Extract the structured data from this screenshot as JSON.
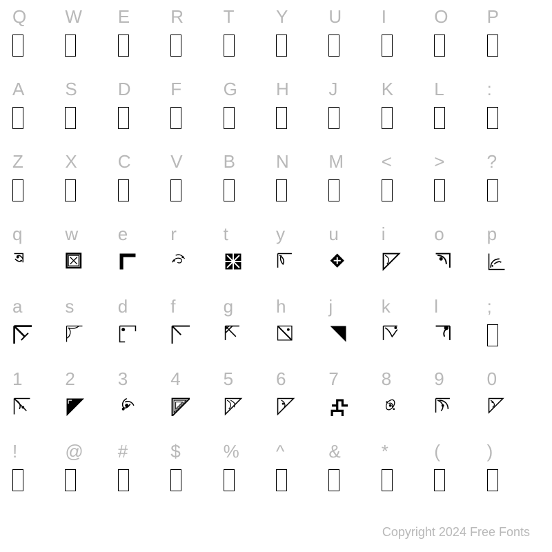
{
  "background_color": "#ffffff",
  "label_color": "#b8b8b8",
  "glyph_border_color": "#000000",
  "label_fontsize": 26,
  "copyright": "Copyright 2024 Free Fonts",
  "rows": [
    {
      "labels": [
        "Q",
        "W",
        "E",
        "R",
        "T",
        "Y",
        "U",
        "I",
        "O",
        "P"
      ],
      "glyph_type": "box"
    },
    {
      "labels": [
        "A",
        "S",
        "D",
        "F",
        "G",
        "H",
        "J",
        "K",
        "L",
        ":"
      ],
      "glyph_type": "box"
    },
    {
      "labels": [
        "Z",
        "X",
        "C",
        "V",
        "B",
        "N",
        "M",
        "<",
        ">",
        "?"
      ],
      "glyph_type": "box"
    },
    {
      "labels": [
        "q",
        "w",
        "e",
        "r",
        "t",
        "y",
        "u",
        "i",
        "o",
        "p"
      ],
      "glyph_type": "ornament_q"
    },
    {
      "labels": [
        "a",
        "s",
        "d",
        "f",
        "g",
        "h",
        "j",
        "k",
        "l",
        ";"
      ],
      "glyph_type": "ornament_a"
    },
    {
      "labels": [
        "1",
        "2",
        "3",
        "4",
        "5",
        "6",
        "7",
        "8",
        "9",
        "0"
      ],
      "glyph_type": "ornament_1"
    },
    {
      "labels": [
        "!",
        "@",
        "#",
        "$",
        "%",
        "^",
        "&",
        "*",
        "(",
        ")"
      ],
      "glyph_type": "box"
    }
  ],
  "ornaments": {
    "q": [
      "<path d='M2 2 L12 2 L12 12 M5 5 C8 3 10 5 12 8 M3 8 C5 10 8 12 10 10' fill='none' stroke='#000' stroke-width='1.2'/><circle cx='6' cy='6' r='1.5' fill='#000'/><circle cx='10' cy='10' r='1' fill='#000'/>",
      "<rect x='2' y='2' width='16' height='16' fill='none' stroke='#000' stroke-width='2'/><path d='M4 4 L16 4 L16 16 L4 16 Z M6 6 L14 14 M14 6 L6 14' fill='none' stroke='#000' stroke-width='1'/>",
      "<path d='M2 2 L20 2 L20 6 L6 6 L6 20 L2 20 Z' fill='#000'/>",
      "<path d='M2 12 C4 8 8 6 12 8 C14 10 12 14 8 12 M6 4 C10 2 14 4 16 8' fill='none' stroke='#000' stroke-width='1'/><circle cx='4' cy='10' r='1.2' fill='#000'/><circle cx='14' cy='6' r='1.2' fill='#000'/>",
      "<rect x='2' y='2' width='18' height='18' fill='#000'/><path d='M4 4 L18 18 M18 4 L4 18 M11 2 L11 20 M2 11 L20 11' stroke='#fff' stroke-width='1.5'/>",
      "<path d='M2 2 L18 2 M2 2 L2 18 M4 4 C8 6 10 10 8 14 C6 12 4 8 6 4' fill='none' stroke='#000' stroke-width='1.2'/>",
      "<path d='M10 2 L18 10 L10 18 L2 10 Z' fill='#000'/><path d='M6 10 L14 10 M10 6 L10 14' stroke='#fff' stroke-width='1.5'/>",
      "<path d='M2 2 L20 2 L2 20 Z' fill='none' stroke='#000' stroke-width='1.5'/><path d='M4 4 C8 6 10 10 6 14' fill='none' stroke='#000' stroke-width='1'/>",
      "<path d='M2 2 L18 2 L18 18 M4 4 C10 4 14 8 14 14' fill='none' stroke='#000' stroke-width='1.5'/><circle cx='8' cy='8' r='2' fill='#000'/>",
      "<path d='M2 2 L2 20 L20 20 M4 18 C4 12 8 8 14 8 M8 14 C10 12 14 10 16 12' fill='none' stroke='#000' stroke-width='1.2'/><circle cx='6' cy='16' r='1' fill='#000'/>"
    ],
    "a": [
      "<path d='M2 2 L2 24 M2 2 L24 2 M2 2 L14 14' fill='none' stroke='#000' stroke-width='2'/><path d='M14 14 L18 10 M14 14 L10 18' stroke='#000' stroke-width='1.5'/>",
      "<path d='M2 2 L2 20 M2 2 L20 2 M4 4 C8 8 6 14 2 16 M4 4 C8 6 14 4 16 2' fill='none' stroke='#000' stroke-width='1'/>",
      "<path d='M2 2 L20 2 L20 8 M2 2 L2 20 L8 20' fill='none' stroke='#000' stroke-width='1.2'/><circle cx='6' cy='6' r='2' fill='#000'/>",
      "<path d='M2 2 L22 2 M2 2 L2 22 M2 2 L12 12' fill='none' stroke='#000' stroke-width='1.5'/>",
      "<path d='M2 2 L2 18 M2 2 L18 2 M2 2 L14 14 M6 2 L2 6 M10 2 L2 10' fill='none' stroke='#000' stroke-width='1.2'/>",
      "<path d='M2 2 L18 2 L18 18 L2 18 Z' fill='none' stroke='#000' stroke-width='1'/><path d='M2 2 L18 18' stroke='#000' stroke-width='1.5'/><circle cx='14' cy='6' r='1.5' fill='#000'/>",
      "<path d='M2 2 L20 2 L20 20 Z' fill='#000'/>",
      "<path d='M2 2 L2 18 M2 2 L18 2 M4 4 C8 6 10 10 12 14 C14 12 16 8 18 6' fill='none' stroke='#000' stroke-width='1.2'/><circle cx='16' cy='4' r='1.5' fill='#000'/>",
      "<path d='M2 2 L18 2 M18 2 L18 18 M16 4 C12 6 10 10 12 14' fill='none' stroke='#000' stroke-width='1.5'/><circle cx='14' cy='4' r='2.5' fill='#000'/>",
      "<rect x='6' y='2' width='8' height='20' fill='none' stroke='#000' stroke-width='1.5'/>"
    ],
    "1": [
      "<path d='M2 2 L2 20 M2 2 L20 2 M2 2 L16 16 M4 4 C8 6 10 10 8 14' fill='none' stroke='#000' stroke-width='1.2'/><circle cx='12' cy='12' r='1.5' fill='#000'/>",
      "<path d='M2 2 L22 2 L2 22 Z' fill='#000'/><path d='M4 4 L8 4 M4 4 L4 8' stroke='#fff' stroke-width='1'/>",
      "<path d='M10 2 C6 4 4 8 6 12 C8 14 12 12 14 8 M8 6 C12 4 16 6 18 10' fill='none' stroke='#000' stroke-width='1.2'/><circle cx='10' cy='10' r='2' fill='#000'/><circle cx='6' cy='14' r='1.5' fill='#000'/>",
      "<path d='M2 2 L22 2 L2 22 Z' fill='none' stroke='#000' stroke-width='1.5'/><path d='M4 4 L18 4 L4 18 Z M6 6 L14 6 L6 14 Z' fill='none' stroke='#000' stroke-width='0.8'/>",
      "<path d='M2 2 L20 2 L2 20 Z' fill='none' stroke='#000' stroke-width='1.2'/><path d='M4 4 C8 6 10 10 6 14 M8 4 C12 6 14 8 12 12' fill='none' stroke='#000' stroke-width='0.9'/>",
      "<path d='M2 2 L20 2 L2 20 Z' fill='none' stroke='#000' stroke-width='1.2'/><path d='M6 4 C10 6 12 10 8 14' fill='none' stroke='#000' stroke-width='1'/><circle cx='8' cy='8' r='1.2' fill='#000'/>",
      "<path d='M4 10 L10 10 L10 4 L16 4 L16 10 L22 10 M10 10 L10 16 L4 16 L4 22 M10 16 L16 16 L16 22' fill='none' stroke='#000' stroke-width='2.5'/>",
      "<path d='M10 4 C6 6 4 10 6 14 C8 16 12 14 14 10 C16 6 14 2 10 4 M8 8 C10 6 14 8 12 12' fill='none' stroke='#000' stroke-width='1'/><circle cx='10' cy='10' r='1.5' fill='#000'/><circle cx='6' cy='6' r='1' fill='#000'/><circle cx='14' cy='14' r='1' fill='#000'/>",
      "<path d='M2 2 L2 18 M2 2 L18 2 M4 4 C10 6 12 12 8 16 M6 4 C12 4 16 8 16 14' fill='none' stroke='#000' stroke-width='1.2'/><circle cx='10' cy='10' r='1.5' fill='#000'/>",
      "<path d='M2 2 L18 2 L2 18 Z' fill='none' stroke='#000' stroke-width='1.2'/><path d='M4 4 C8 6 10 10 6 12' fill='none' stroke='#000' stroke-width='0.9'/><circle cx='6' cy='6' r='1' fill='#000'/>"
    ]
  }
}
